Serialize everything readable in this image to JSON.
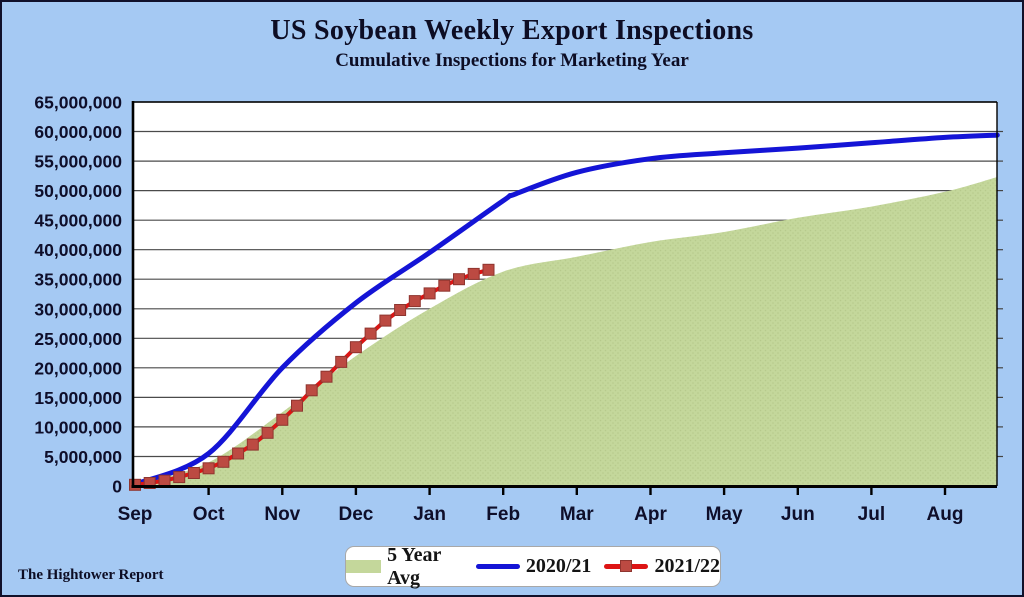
{
  "header": {
    "title": "US Soybean Weekly Export Inspections",
    "subtitle": "Cumulative Inspections for Marketing Year"
  },
  "footer": {
    "brand": "The Hightower Report"
  },
  "colors": {
    "background": "#A5C9F3",
    "plot_background": "#FFFFFF",
    "gridline": "#4a4a4a",
    "axis": "#000000",
    "text_dark": "#0d0d24",
    "avg_fill": "#C4D79B",
    "avg_dot": "#b7ca8c",
    "line_2020_21": "#1414D6",
    "line_2021_22": "#DD1414",
    "marker_2021_22": "#BC4A42"
  },
  "chart_data": {
    "type": "line",
    "title": "US Soybean Weekly Export Inspections",
    "subtitle": "Cumulative Inspections for Marketing Year",
    "ylabel": "",
    "xlabel": "",
    "ylim": [
      0,
      65000000
    ],
    "y_tick_step": 5000000,
    "grid": "horizontal",
    "legend_position": "bottom-center",
    "y_tick_labels": [
      "0",
      "5,000,000",
      "10,000,000",
      "15,000,000",
      "20,000,000",
      "25,000,000",
      "30,000,000",
      "35,000,000",
      "40,000,000",
      "45,000,000",
      "50,000,000",
      "55,000,000",
      "60,000,000",
      "65,000,000"
    ],
    "x_tick_labels": [
      "Sep",
      "Oct",
      "Nov",
      "Dec",
      "Jan",
      "Feb",
      "Mar",
      "Apr",
      "May",
      "Jun",
      "Jul",
      "Aug"
    ],
    "series": [
      {
        "name": "5 Year Avg",
        "type": "area",
        "color": "#C4D79B",
        "x_months": [
          0,
          1,
          2,
          3,
          4,
          5,
          6,
          7,
          8,
          9,
          10,
          11,
          11.71
        ],
        "values": [
          200000,
          4000000,
          12500000,
          22000000,
          30000000,
          36300000,
          38800000,
          41300000,
          43000000,
          45400000,
          47300000,
          49800000,
          52300000
        ]
      },
      {
        "name": "2020/21",
        "type": "line",
        "color": "#1414D6",
        "x_months": [
          0,
          1,
          2,
          3,
          4,
          5,
          5.16,
          6,
          7,
          8,
          9,
          10,
          11,
          11.71
        ],
        "values": [
          300000,
          5500000,
          20000000,
          31000000,
          39500000,
          48300000,
          49400000,
          53100000,
          55400000,
          56400000,
          57200000,
          58100000,
          59000000,
          59400000
        ]
      },
      {
        "name": "2021/22",
        "type": "line",
        "marker": "square",
        "color": "#DD1414",
        "marker_color": "#BC4A42",
        "x_months": [
          0,
          0.2,
          0.4,
          0.6,
          0.8,
          1.0,
          1.2,
          1.4,
          1.6,
          1.8,
          2.0,
          2.2,
          2.4,
          2.6,
          2.8,
          3.0,
          3.2,
          3.4,
          3.6,
          3.8,
          4.0,
          4.2,
          4.4,
          4.6,
          4.8
        ],
        "values": [
          200000,
          500000,
          900000,
          1500000,
          2200000,
          3000000,
          4100000,
          5500000,
          7000000,
          9000000,
          11200000,
          13600000,
          16200000,
          18500000,
          21000000,
          23500000,
          25800000,
          28000000,
          29800000,
          31300000,
          32600000,
          33900000,
          35000000,
          35900000,
          36600000
        ]
      }
    ]
  }
}
